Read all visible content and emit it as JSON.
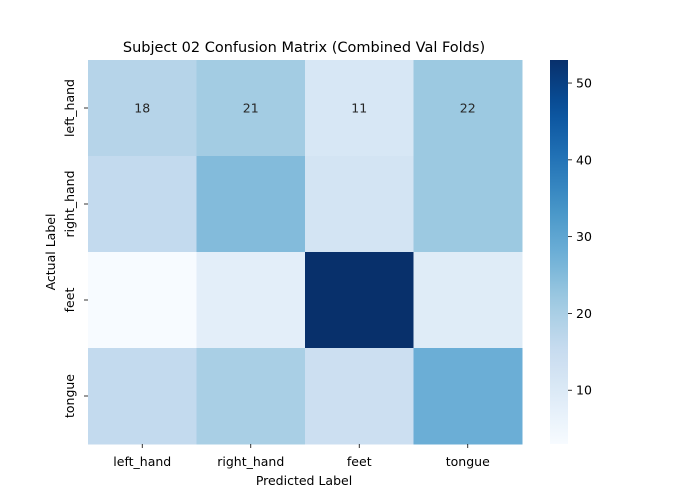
{
  "chart_data": {
    "type": "heatmap",
    "title": "Subject 02 Confusion Matrix (Combined Val Folds)",
    "xlabel": "Predicted Label",
    "ylabel": "Actual Label",
    "x_categories": [
      "left_hand",
      "right_hand",
      "feet",
      "tongue"
    ],
    "y_categories": [
      "left_hand",
      "right_hand",
      "feet",
      "tongue"
    ],
    "values": [
      [
        18,
        21,
        11,
        22
      ],
      [
        16,
        25,
        12,
        22
      ],
      [
        3,
        8,
        53,
        9
      ],
      [
        16,
        20,
        14,
        28
      ]
    ],
    "annotations": [
      [
        "18",
        "21",
        "11",
        "22"
      ],
      [
        "",
        "",
        "",
        ""
      ],
      [
        "",
        "",
        "",
        ""
      ],
      [
        "",
        "",
        "",
        ""
      ]
    ],
    "colormap": "Blues",
    "color_range": [
      3,
      53
    ],
    "colorbar_ticks": [
      10,
      20,
      30,
      40,
      50
    ],
    "colors": {
      "min": "#f7fbff",
      "max": "#08306b"
    }
  }
}
